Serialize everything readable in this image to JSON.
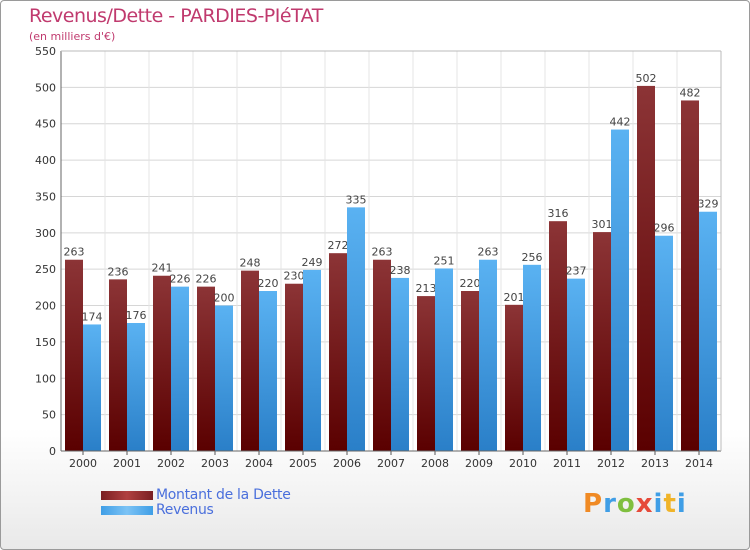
{
  "header": {
    "title": "Revenus/Dette - PARDIES-PIéTAT",
    "subtitle": "(en milliers d'€)"
  },
  "legend": {
    "items": [
      {
        "label": "Montant de la Dette",
        "color": "#7a1f22"
      },
      {
        "label": "Revenus",
        "color": "#3f9ee6"
      }
    ]
  },
  "logo": {
    "letters": [
      "P",
      "r",
      "o",
      "x",
      "i",
      "t",
      "i"
    ],
    "colors": [
      "#f08a24",
      "#3f9ee6",
      "#7fbf3f",
      "#e64a3a",
      "#3f9ee6",
      "#f0b429",
      "#3f9ee6"
    ]
  },
  "chart_data": {
    "type": "bar",
    "categories": [
      "2000",
      "2001",
      "2002",
      "2003",
      "2004",
      "2005",
      "2006",
      "2007",
      "2008",
      "2009",
      "2010",
      "2011",
      "2012",
      "2013",
      "2014"
    ],
    "series": [
      {
        "name": "Montant de la Dette",
        "color": "#7a1f22",
        "values": [
          263,
          236,
          241,
          226,
          248,
          230,
          272,
          263,
          213,
          220,
          201,
          316,
          301,
          502,
          482
        ]
      },
      {
        "name": "Revenus",
        "color": "#3f9ee6",
        "values": [
          174,
          176,
          226,
          200,
          220,
          249,
          335,
          238,
          251,
          263,
          256,
          237,
          442,
          296,
          329
        ]
      }
    ],
    "yticks": [
      0,
      50,
      100,
      150,
      200,
      250,
      300,
      350,
      400,
      450,
      500,
      550
    ],
    "ylim": [
      0,
      550
    ],
    "grid": true,
    "legend_position": "bottom-left",
    "data_labels": true
  }
}
